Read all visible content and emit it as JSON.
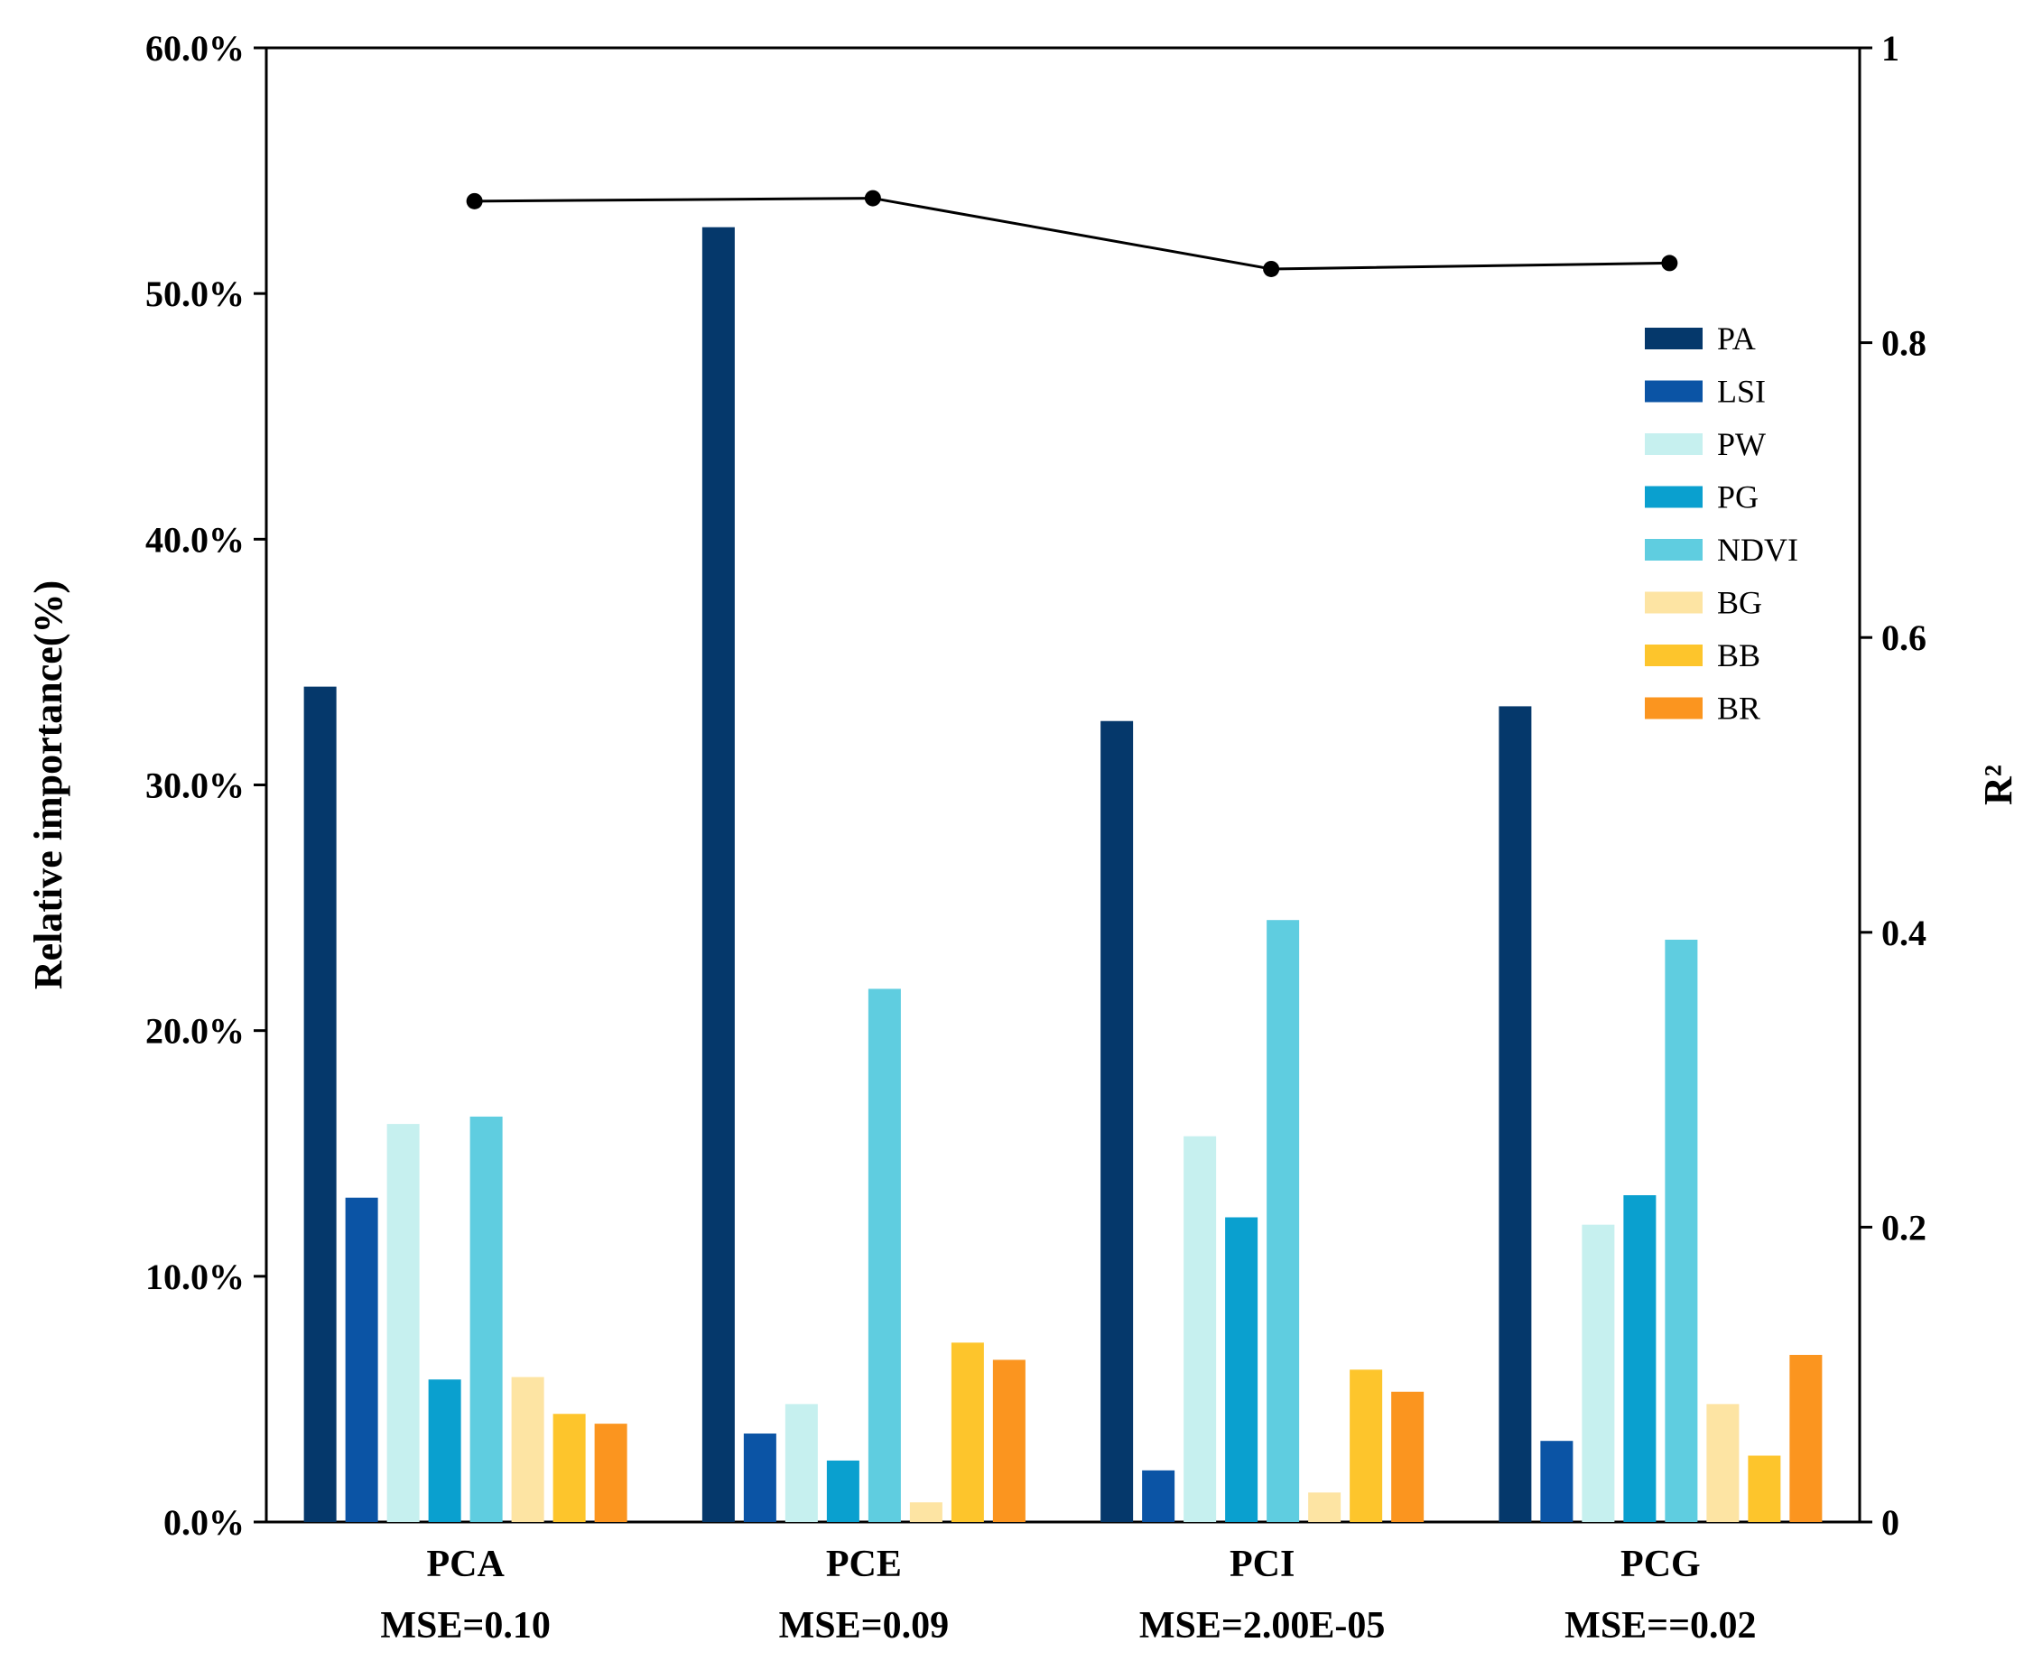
{
  "chart_data": {
    "type": "bar",
    "categories": [
      "PCA",
      "PCE",
      "PCI",
      "PCG"
    ],
    "category_sublabels": [
      "MSE=0.10",
      "MSE=0.09",
      "MSE=2.00E-05",
      "MSE==0.02"
    ],
    "ylabel": "Relative importance(%)",
    "ylim": [
      0,
      60
    ],
    "yticks": [
      0,
      10,
      20,
      30,
      40,
      50,
      60
    ],
    "ytick_labels": [
      "0.0%",
      "10.0%",
      "20.0%",
      "30.0%",
      "40.0%",
      "50.0%",
      "60.0%"
    ],
    "y2label": "R²",
    "y2lim": [
      0,
      1
    ],
    "y2ticks": [
      0,
      0.2,
      0.4,
      0.6,
      0.8,
      1
    ],
    "y2tick_labels": [
      "0",
      "0.2",
      "0.4",
      "0.6",
      "0.8",
      "1"
    ],
    "series": [
      {
        "name": "PA",
        "color": "#05386b",
        "values": [
          34.0,
          52.7,
          32.6,
          33.2
        ]
      },
      {
        "name": "LSI",
        "color": "#0b54a5",
        "values": [
          13.2,
          3.6,
          2.1,
          3.3
        ]
      },
      {
        "name": "PW",
        "color": "#c6f0ef",
        "values": [
          16.2,
          4.8,
          15.7,
          12.1
        ]
      },
      {
        "name": "PG",
        "color": "#0aa0cf",
        "values": [
          5.8,
          2.5,
          12.4,
          13.3
        ]
      },
      {
        "name": "NDVI",
        "color": "#5fcde0",
        "values": [
          16.5,
          21.7,
          24.5,
          23.7
        ]
      },
      {
        "name": "BG",
        "color": "#fde4a3",
        "values": [
          5.9,
          0.8,
          1.2,
          4.8
        ]
      },
      {
        "name": "BB",
        "color": "#fdc52c",
        "values": [
          4.4,
          7.3,
          6.2,
          2.7
        ]
      },
      {
        "name": "BR",
        "color": "#fb951f",
        "values": [
          4.0,
          6.6,
          5.3,
          6.8
        ]
      }
    ],
    "line_series": {
      "name": "R²",
      "axis": "right",
      "color": "#000000",
      "values": [
        0.896,
        0.898,
        0.85,
        0.854
      ]
    },
    "legend_position": "top-right",
    "grid": false
  }
}
